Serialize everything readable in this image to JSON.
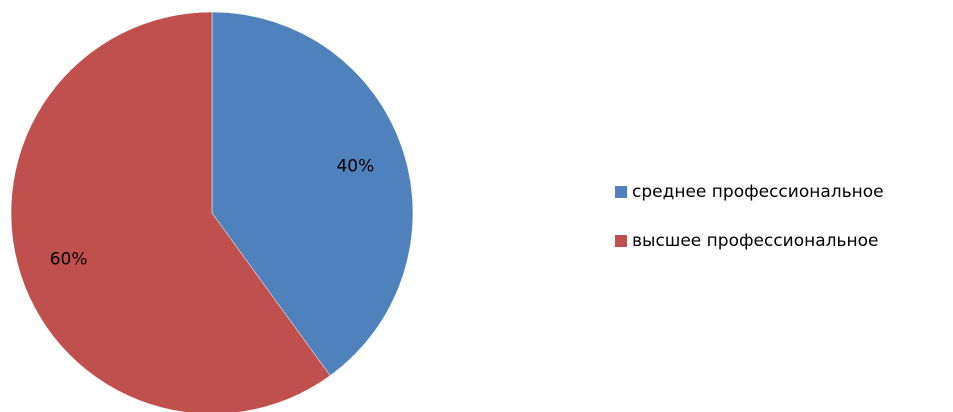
{
  "chart_data": {
    "type": "pie",
    "categories": [
      "среднее профессиональное",
      "высшее профессиональное"
    ],
    "values": [
      40,
      60
    ],
    "value_labels": [
      "40%",
      "60%"
    ],
    "colors": [
      "#4f81bd",
      "#c0504d"
    ],
    "legend": "right"
  }
}
